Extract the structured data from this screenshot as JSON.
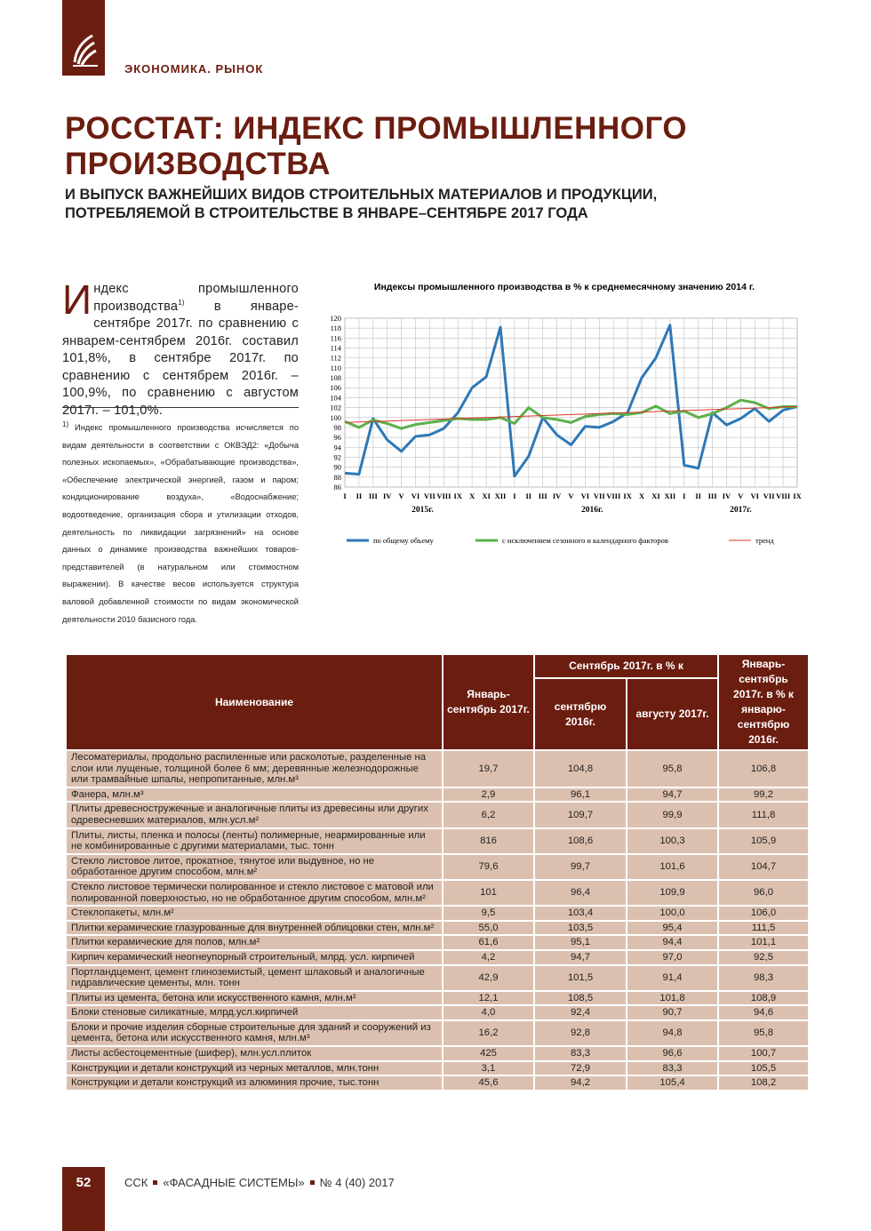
{
  "header": {
    "section": "ЭКОНОМИКА. РЫНОК"
  },
  "title": [
    "РОССТАТ: ИНДЕКС ПРОМЫШЛЕННОГО",
    "ПРОИЗВОДСТВА"
  ],
  "subtitle": [
    "И ВЫПУСК ВАЖНЕЙШИХ ВИДОВ СТРОИТЕЛЬНЫХ МАТЕРИАЛОВ И ПРОДУКЦИИ,",
    "ПОТРЕБЛЯЕМОЙ В СТРОИТЕЛЬСТВЕ  В ЯНВАРЕ–СЕНТЯБРЕ 2017 ГОДА"
  ],
  "intro": {
    "drop_cap": "И",
    "text_before": "ндекс промышленного производства",
    "footnote_mark": "1)",
    "text_after": " в январе-сентябре 2017г. по сравнению с январем-сентябрем 2016г. составил 101,8%, в сентябре 2017г. по сравнению с сентябрем 2016г. – 100,9%, по сравнению с августом 2017г. – 101,0%."
  },
  "footnote": {
    "mark": "1)",
    "text": " Индекс промышленного производства исчисляется по видам деятельности в соответствии с ОКВЭД2: «Добыча полезных ископаемых», «Обрабатывающие производства», «Обеспечение электрической энергией, газом и паром; кондиционирование воздуха», «Водоснабжение; водоотведение, организация сбора и утилизации отходов, деятельность по ликвидации загрязнений» на основе данных о динамике производства важнейших товаров-представителей (в натуральном или стоимостном выражении). В качестве весов используется структура валовой добавленной стоимости по видам экономической деятельности 2010 базисного года."
  },
  "chart_data": {
    "type": "line",
    "title": "Индексы промышленного производства в % к среднемесячному значению 2014 г.",
    "categories": [
      "I",
      "II",
      "III",
      "IV",
      "V",
      "VI",
      "VII",
      "VIII",
      "IX",
      "X",
      "XI",
      "XII",
      "I",
      "II",
      "III",
      "IV",
      "V",
      "VI",
      "VII",
      "VIII",
      "IX",
      "X",
      "XI",
      "XII",
      "I",
      "II",
      "III",
      "IV",
      "V",
      "VI",
      "VII",
      "VIII",
      "IX"
    ],
    "years": [
      "2015г.",
      "2016г.",
      "2017г."
    ],
    "ylim": [
      86,
      120
    ],
    "yticks": [
      86,
      88,
      90,
      92,
      94,
      96,
      98,
      100,
      102,
      104,
      106,
      108,
      110,
      112,
      114,
      116,
      118,
      120
    ],
    "grid": true,
    "series": [
      {
        "name": "по общему объему",
        "color": "#2e78b7",
        "values": [
          88.8,
          88.6,
          99.8,
          95.5,
          93.2,
          96.2,
          96.5,
          97.8,
          101,
          106,
          108.2,
          118.2,
          88.2,
          92.2,
          100,
          96.5,
          94.5,
          98.2,
          98,
          99.2,
          101,
          108,
          112,
          118.6,
          90.4,
          89.8,
          101,
          98.5,
          99.8,
          101.8,
          99.2,
          101.5,
          102.2
        ]
      },
      {
        "name": "с исключением сезонного и календарного факторов",
        "color": "#5bb04a",
        "values": [
          99.2,
          98,
          99.5,
          98.8,
          97.8,
          98.6,
          99,
          99.4,
          99.8,
          99.6,
          99.6,
          100,
          98.8,
          102,
          100,
          99.6,
          99,
          100.2,
          100.6,
          100.8,
          100.6,
          101,
          102.3,
          100.8,
          101.3,
          100,
          100.8,
          102,
          103.5,
          103,
          101.8,
          102.2,
          102.2
        ]
      },
      {
        "name": "тренд",
        "color": "#d9362b",
        "values": [
          99.0,
          99.1,
          99.2,
          99.3,
          99.4,
          99.5,
          99.6,
          99.7,
          99.8,
          99.9,
          100.0,
          100.1,
          100.2,
          100.3,
          100.4,
          100.5,
          100.6,
          100.7,
          100.8,
          100.9,
          101.0,
          101.1,
          101.2,
          101.3,
          101.4,
          101.5,
          101.6,
          101.7,
          101.8,
          101.9,
          102.0,
          102.1,
          102.2
        ]
      }
    ]
  },
  "table": {
    "header": {
      "name": "Наименование",
      "ytd": "Январь-сентябрь 2017г.",
      "sep_group": "Сентябрь 2017г.  в % к",
      "sep_2016": "сентябрю 2016г.",
      "aug_2017": "августу 2017г.",
      "ytd_pct": "Январь-сентябрь 2017г. в % к январю-сентябрю 2016г."
    },
    "rows": [
      [
        "Лесоматериалы, продольно распиленные или расколотые, разделенные на слои или лущеные, толщиной более 6 мм; деревянные железнодорожные или трамвайные шпалы, непропитанные, млн.м³",
        "19,7",
        "104,8",
        "95,8",
        "106,8"
      ],
      [
        "Фанера, млн.м³",
        "2,9",
        "96,1",
        "94,7",
        "99,2"
      ],
      [
        "Плиты древесностружечные и аналогичные плиты из древесины или других одревесневших материалов, млн.усл.м²",
        "6,2",
        "109,7",
        "99,9",
        "111,8"
      ],
      [
        "Плиты, листы, пленка и полосы (ленты) полимерные, неармированные или не  комбинированные с другими материалами, тыс. тонн",
        "816",
        "108,6",
        "100,3",
        "105,9"
      ],
      [
        "Стекло листовое литое, прокатное, тянутое или выдувное, но не обработанное другим способом, млн.м²",
        "79,6",
        "99,7",
        "101,6",
        "104,7"
      ],
      [
        "Стекло листовое термически полированное и стекло листовое с матовой или полированной поверхностью, но не обработанное другим способом, млн.м²",
        "101",
        "96,4",
        "109,9",
        "96,0"
      ],
      [
        "Стеклопакеты, млн.м²",
        "9,5",
        "103,4",
        "100,0",
        "106,0"
      ],
      [
        "Плитки керамические глазурованные для внутренней облицовки стен, млн.м²",
        "55,0",
        "103,5",
        "95,4",
        "111,5"
      ],
      [
        "Плитки керамические для полов, млн.м²",
        "61,6",
        "95,1",
        "94,4",
        "101,1"
      ],
      [
        "Кирпич керамический неогнеупорный строительный, млрд. усл. кирпичей",
        "4,2",
        "94,7",
        "97,0",
        "92,5"
      ],
      [
        "Портландцемент, цемент глиноземистый, цемент шлаковый и аналогичные гидравлические цементы, млн. тонн",
        "42,9",
        "101,5",
        "91,4",
        "98,3"
      ],
      [
        "Плиты из цемента, бетона или искусственного камня, млн.м²",
        "12,1",
        "108,5",
        "101,8",
        "108,9"
      ],
      [
        "Блоки стеновые силикатные, млрд.усл.кирпичей",
        "4,0",
        "92,4",
        "90,7",
        "94,6"
      ],
      [
        "Блоки и прочие изделия сборные строительные для зданий и сооружений из цемента, бетона или искусственного камня, млн.м³",
        "16,2",
        "92,8",
        "94,8",
        "95,8"
      ],
      [
        "Листы асбестоцементные (шифер), млн.усл.плиток",
        "425",
        "83,3",
        "96,6",
        "100,7"
      ],
      [
        "Конструкции и детали конструкций из черных металлов, млн.тонн",
        "3,1",
        "72,9",
        "83,3",
        "105,5"
      ],
      [
        "Конструкции и детали конструкций из алюминия прочие, тыс.тонн",
        "45,6",
        "94,2",
        "105,4",
        "108,2"
      ]
    ]
  },
  "footer": {
    "page": "52",
    "parts": [
      "ССК",
      "«ФАСАДНЫЕ СИСТЕМЫ»",
      "№ 4 (40) 2017"
    ]
  }
}
